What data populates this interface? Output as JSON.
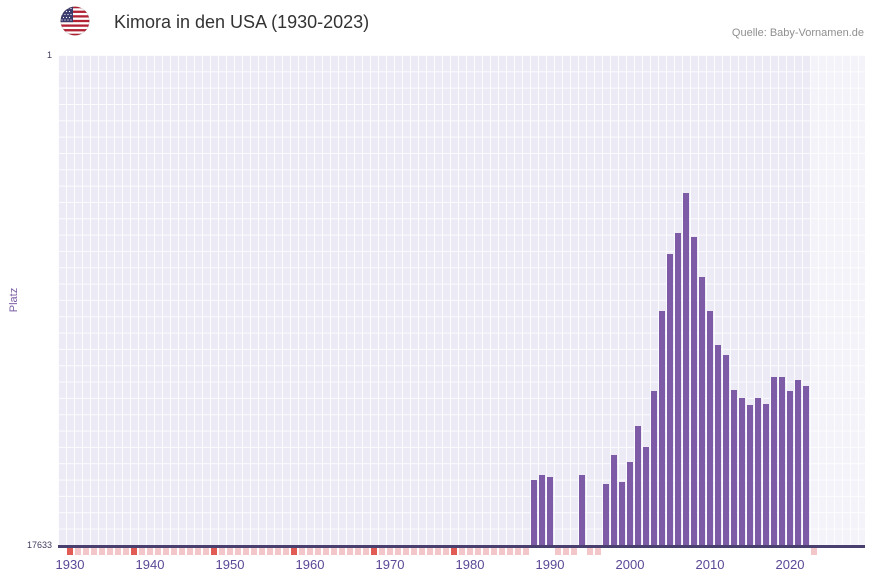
{
  "header": {
    "title": "Kimora in den USA (1930-2023)",
    "source": "Quelle: Baby-Vornamen.de",
    "flag_icon": "us-flag"
  },
  "chart_data": {
    "type": "bar",
    "title": "Kimora in den USA (1930-2023)",
    "ylabel": "Platz",
    "grid": true,
    "y_axis": {
      "min": 1,
      "max": 17633,
      "inverted": true,
      "tick_labels": [
        "1",
        "17633"
      ]
    },
    "x_axis": {
      "range": [
        1930,
        2023
      ],
      "tick_labels": [
        1930,
        1940,
        1950,
        1960,
        1970,
        1980,
        1990,
        2000,
        2010,
        2020
      ]
    },
    "ranks": {
      "1988": 15300,
      "1989": 15100,
      "1990": 15200,
      "1994": 15100,
      "1997": 15450,
      "1998": 14400,
      "1999": 15350,
      "2000": 14650,
      "2001": 13350,
      "2002": 14100,
      "2003": 12100,
      "2004": 9200,
      "2005": 7150,
      "2006": 6400,
      "2007": 4950,
      "2008": 6550,
      "2009": 8000,
      "2010": 9200,
      "2011": 10450,
      "2012": 10800,
      "2013": 12050,
      "2014": 12350,
      "2015": 12600,
      "2016": 12350,
      "2017": 12550,
      "2018": 11600,
      "2019": 11600,
      "2020": 12100,
      "2021": 11700,
      "2022": 11900
    },
    "unranked_years_dark_marker": [
      1930,
      1938,
      1948,
      1958,
      1968,
      1978
    ],
    "recent_band_from_year": 2022.5,
    "colors": {
      "bar": "#7d5ba6",
      "plot_background": "#eceaf5",
      "grid_line": "#ffffff",
      "axis_line": "#4a4070",
      "x_tick_label": "#5b4896",
      "y_tick_label": "#413b60",
      "y_axis_label": "#7a5ca3",
      "unranked_marker": "#f3c6c9",
      "unranked_marker_dark": "#e05c55"
    }
  }
}
